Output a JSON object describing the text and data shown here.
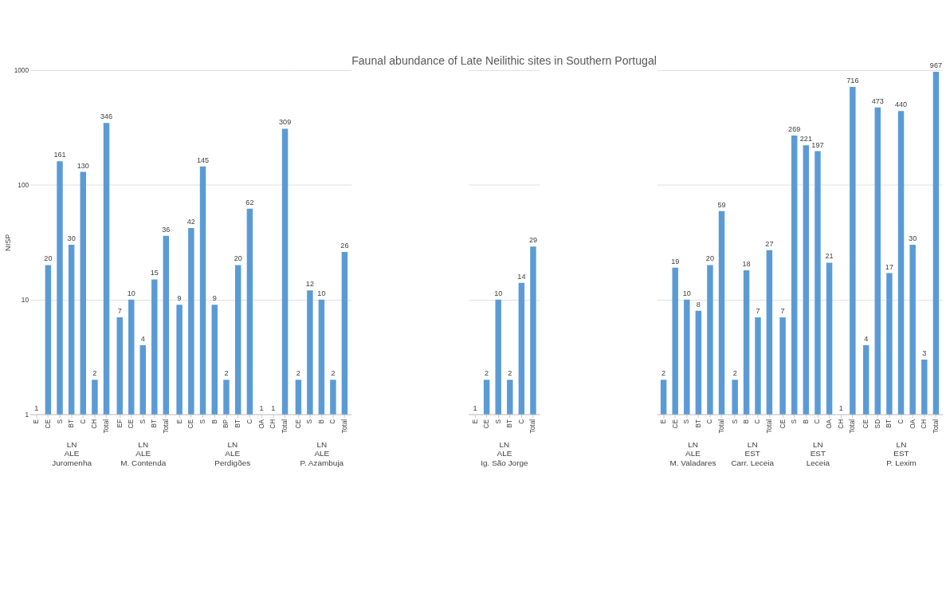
{
  "chart_data": [
    {
      "type": "bar",
      "ylabel": "NISP",
      "categories": [
        "E",
        "CE",
        "S",
        "BT",
        "C",
        "CH",
        "Total"
      ],
      "values": [
        1,
        20,
        161,
        30,
        130,
        2,
        346
      ],
      "color": "#5b9bd5",
      "log": true,
      "ylim": [
        1,
        1000
      ],
      "yticks": [
        1,
        10,
        100,
        1000
      ],
      "grid": "y",
      "data_labels": true,
      "annotations": [
        "LN",
        "ALE",
        "Juromenha"
      ]
    },
    {
      "type": "bar",
      "categories": [
        "EF",
        "CE",
        "S",
        "BT",
        "Total"
      ],
      "values": [
        7,
        10,
        4,
        15,
        36
      ],
      "color": "#5b9bd5",
      "log": true,
      "ylim": [
        1,
        1000
      ],
      "yticks": [
        1,
        10,
        100,
        1000
      ],
      "grid": "y",
      "data_labels": true,
      "tick_labels": "x",
      "annotations": [
        "LN",
        "ALE",
        "M. Contenda"
      ]
    },
    {
      "type": "bar",
      "categories": [
        "E",
        "CE",
        "S",
        "B",
        "BP",
        "BT",
        "C",
        "OA",
        "CH",
        "Total"
      ],
      "values": [
        9,
        42,
        145,
        9,
        2,
        20,
        62,
        1,
        1,
        309
      ],
      "color": "#5b9bd5",
      "log": true,
      "ylim": [
        1,
        1000
      ],
      "yticks": [
        1,
        10,
        100,
        1000
      ],
      "grid": "y",
      "data_labels": true,
      "tick_labels": "x",
      "annotations": [
        "LN",
        "ALE",
        "Perdigões"
      ]
    },
    {
      "type": "bar",
      "categories": [
        "CE",
        "S",
        "B",
        "C",
        "Total"
      ],
      "values": [
        2,
        12,
        10,
        2,
        26
      ],
      "color": "#5b9bd5",
      "log": true,
      "ylim": [
        1,
        1000
      ],
      "yticks": [
        1,
        10,
        100,
        1000
      ],
      "grid": "y",
      "data_labels": true,
      "tick_labels": "x",
      "annotations": [
        "LN",
        "ALE",
        "P. Azambuja"
      ]
    },
    {
      "type": "bar",
      "title": "Faunal abundance of Late Neilithic sites in Southern Portugal",
      "categories": [
        "E",
        "CE",
        "S",
        "BT",
        "C",
        "Total"
      ],
      "values": [
        1,
        2,
        10,
        2,
        14,
        29
      ],
      "color": "#5b9bd5",
      "log": true,
      "ylim": [
        1,
        1000
      ],
      "yticks": [
        1,
        10,
        100,
        1000
      ],
      "grid": "y",
      "data_labels": true,
      "tick_labels": "x",
      "annotations": [
        "LN",
        "ALE",
        "Ig. São Jorge"
      ]
    },
    {
      "type": "bar",
      "categories": [
        "E",
        "CE",
        "S",
        "BT",
        "C",
        "Total"
      ],
      "values": [
        2,
        19,
        10,
        8,
        20,
        59
      ],
      "color": "#5b9bd5",
      "log": true,
      "ylim": [
        1,
        1000
      ],
      "yticks": [
        1,
        10,
        100,
        1000
      ],
      "grid": "y",
      "data_labels": true,
      "tick_labels": "x",
      "annotations": [
        "LN",
        "ALE",
        "M. Valadares"
      ]
    },
    {
      "type": "bar",
      "categories": [
        "S",
        "B",
        "C",
        "Total"
      ],
      "values": [
        2,
        18,
        7,
        27
      ],
      "color": "#5b9bd5",
      "log": true,
      "ylim": [
        1,
        1000
      ],
      "yticks": [
        1,
        10,
        100,
        1000
      ],
      "grid": "y",
      "data_labels": true,
      "tick_labels": "x",
      "annotations": [
        "LN",
        "EST",
        "Carr. Leceia"
      ]
    },
    {
      "type": "bar",
      "categories": [
        "CE",
        "S",
        "B",
        "C",
        "OA",
        "CH",
        "Total"
      ],
      "values": [
        7,
        269,
        221,
        197,
        21,
        1,
        716
      ],
      "color": "#5b9bd5",
      "log": true,
      "ylim": [
        1,
        1000
      ],
      "yticks": [
        1,
        10,
        100,
        1000
      ],
      "grid": "y",
      "data_labels": true,
      "tick_labels": "x",
      "annotations": [
        "LN",
        "EST",
        "Leceia"
      ]
    },
    {
      "type": "bar",
      "categories": [
        "CE",
        "SD",
        "BT",
        "C",
        "OA",
        "CH",
        "Total"
      ],
      "values": [
        4,
        473,
        17,
        440,
        30,
        3,
        967
      ],
      "color": "#5b9bd5",
      "log": true,
      "ylim": [
        1,
        1000
      ],
      "yticks": [
        1,
        10,
        100,
        1000
      ],
      "grid": "y",
      "data_labels": true,
      "tick_labels": "x",
      "annotations": [
        "LN",
        "EST",
        "P. Lexim"
      ]
    }
  ]
}
